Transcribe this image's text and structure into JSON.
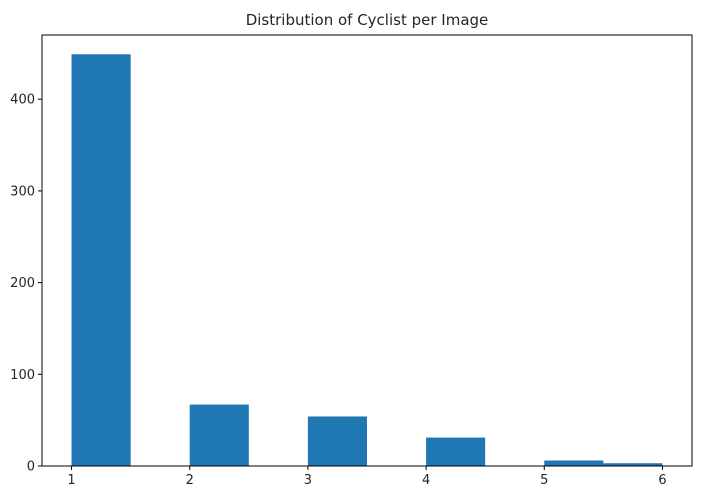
{
  "chart_data": {
    "type": "bar",
    "title": "Distribution of Cyclist per Image",
    "xlabel": "",
    "ylabel": "",
    "xlim": [
      0.75,
      6.25
    ],
    "ylim": [
      0,
      470
    ],
    "grid": false,
    "bar_color": "#1f77b4",
    "bar_width": 0.5,
    "bars": [
      {
        "x_start": 1.0,
        "value": 449
      },
      {
        "x_start": 2.0,
        "value": 67
      },
      {
        "x_start": 3.0,
        "value": 54
      },
      {
        "x_start": 4.0,
        "value": 31
      },
      {
        "x_start": 5.0,
        "value": 6
      },
      {
        "x_start": 5.5,
        "value": 3
      }
    ],
    "x_ticks": [
      1,
      2,
      3,
      4,
      5,
      6
    ],
    "x_tick_labels": [
      "1",
      "2",
      "3",
      "4",
      "5",
      "6"
    ],
    "y_ticks": [
      0,
      100,
      200,
      300,
      400
    ],
    "y_tick_labels": [
      "0",
      "100",
      "200",
      "300",
      "400"
    ]
  }
}
